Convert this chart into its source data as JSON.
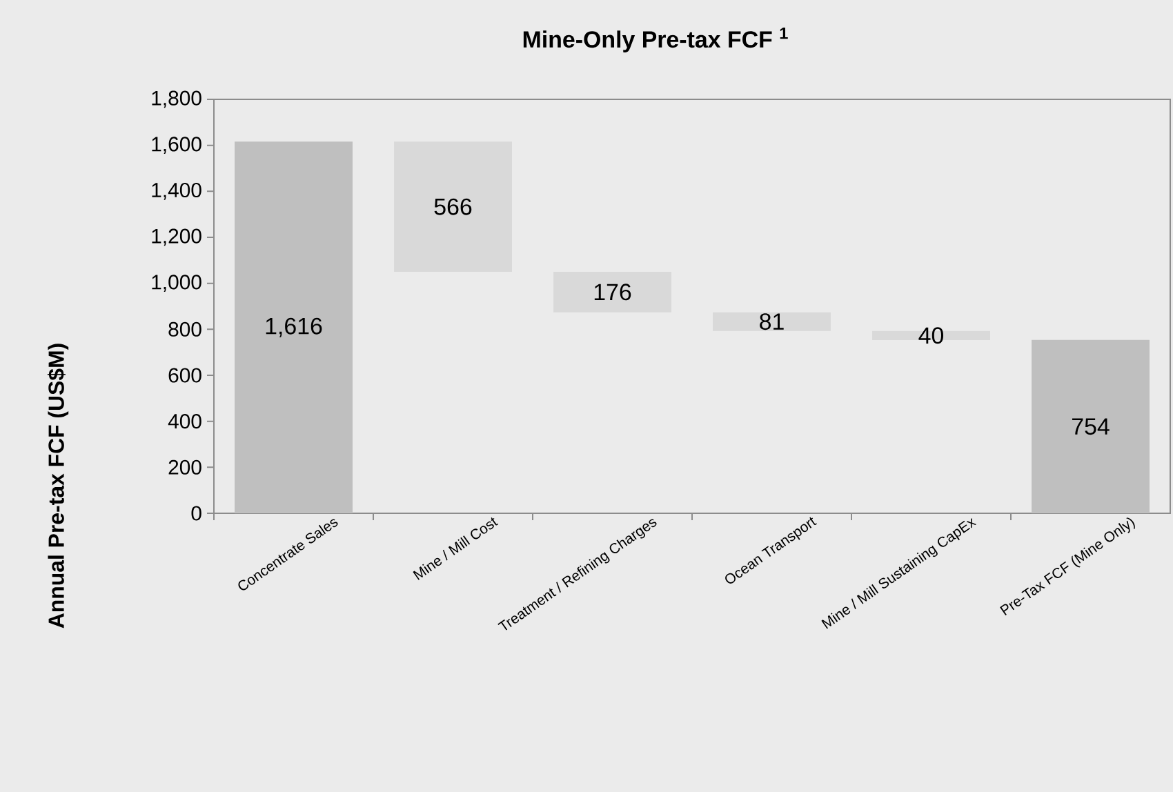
{
  "chart_data": {
    "type": "bar",
    "title": "Mine-Only Pre-tax FCF $^{1}$",
    "ylabel": "Annual Pre-tax FCF (US$M)",
    "categories": [
      "Concentrate Sales",
      "Mine / Mill Cost",
      "Treatment / Refining Charges",
      "Ocean Transport",
      "Mine / Mill Sustaining CapEx",
      "Pre-Tax FCF (Mine Only)"
    ],
    "values": [
      1616,
      566,
      176,
      81,
      40,
      754
    ],
    "base": [
      0,
      1050,
      874,
      793,
      753,
      0
    ],
    "colors": [
      "#bfbfbf",
      "#d9d9d9",
      "#d9d9d9",
      "#d9d9d9",
      "#d9d9d9",
      "#bfbfbf"
    ],
    "value_labels": [
      "1,616",
      "566",
      "176",
      "81",
      "40",
      "754"
    ],
    "ylim": [
      0,
      1800
    ],
    "yticks": [
      {
        "value": 0,
        "label": "0"
      },
      {
        "value": 200,
        "label": "200"
      },
      {
        "value": 400,
        "label": "400"
      },
      {
        "value": 600,
        "label": "600"
      },
      {
        "value": 800,
        "label": "800"
      },
      {
        "value": 1000,
        "label": "1,000"
      },
      {
        "value": 1200,
        "label": "1,200"
      },
      {
        "value": 1400,
        "label": "1,400"
      },
      {
        "value": 1600,
        "label": "1,600"
      },
      {
        "value": 1800,
        "label": "1,800"
      }
    ]
  }
}
